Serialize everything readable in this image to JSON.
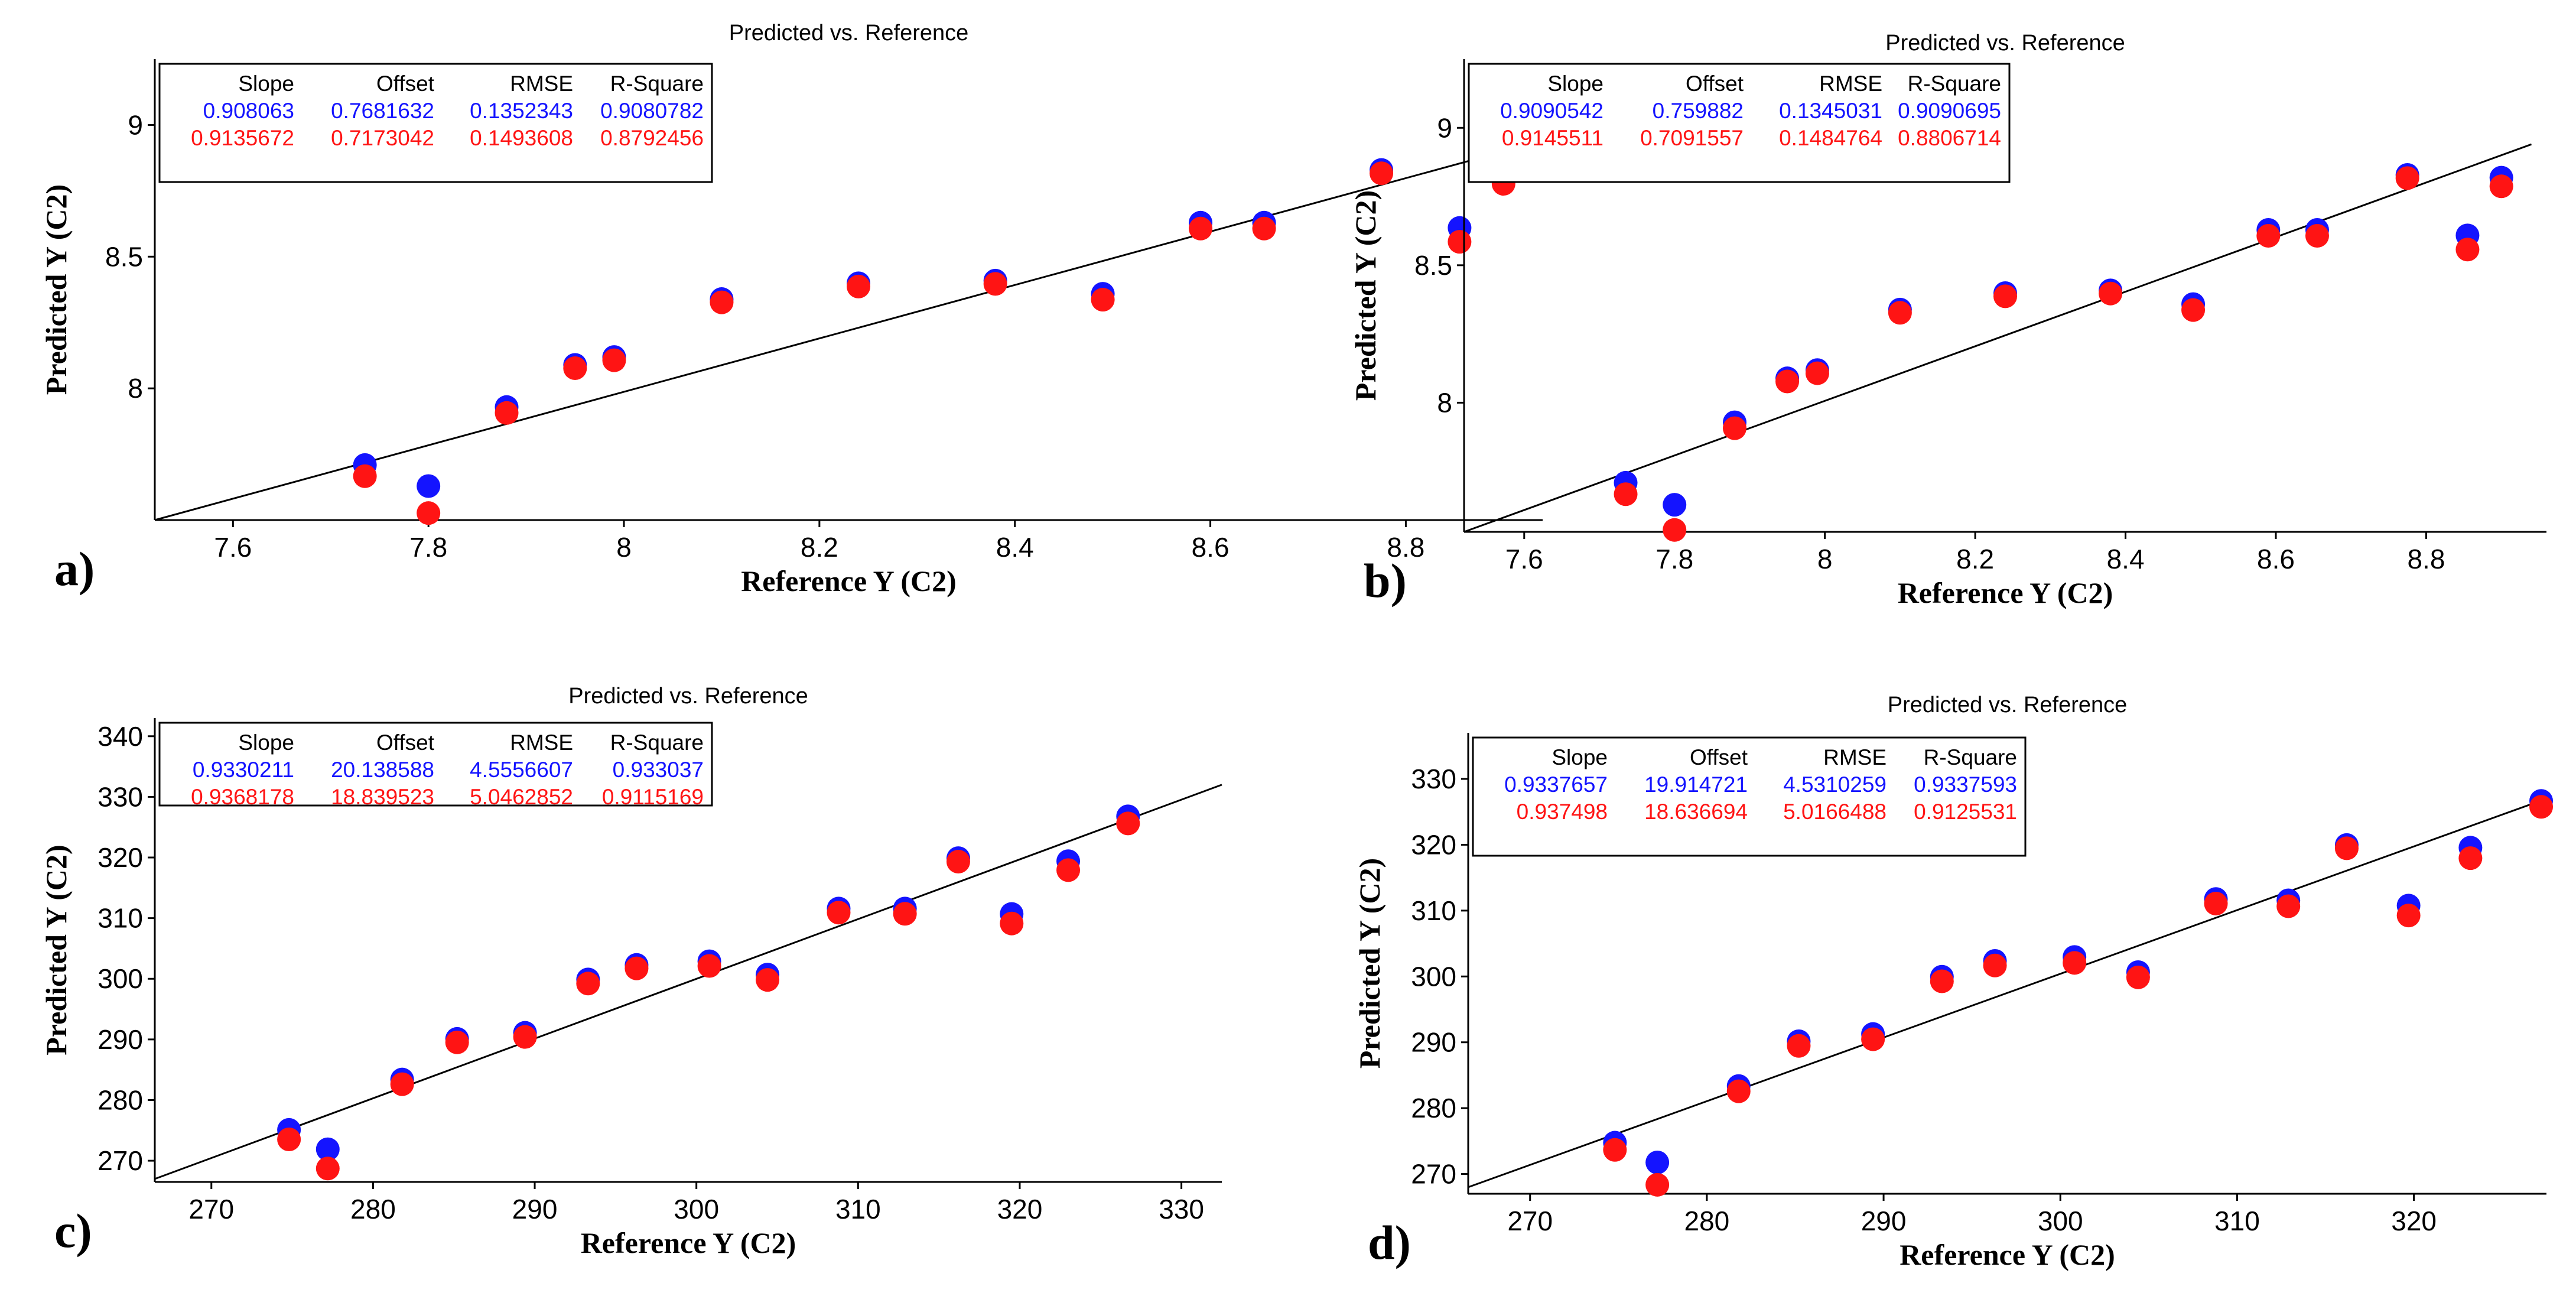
{
  "colors": {
    "calibration": "#1414ff",
    "validation": "#ff1414",
    "axis": "#000000"
  },
  "chart_data": [
    {
      "panel": "a)",
      "type": "scatter",
      "title": "Predicted vs. Reference",
      "xlabel": "Reference Y (C2)",
      "ylabel": "Predicted Y (C2)",
      "xlim": [
        7.52,
        8.94
      ],
      "ylim": [
        7.5,
        9.25
      ],
      "xticks": [
        "7.6",
        "7.8",
        "8",
        "8.2",
        "8.4",
        "8.6",
        "8.8"
      ],
      "xtick_values": [
        7.6,
        7.8,
        8.0,
        8.2,
        8.4,
        8.6,
        8.8
      ],
      "yticks": [
        "8",
        "8.5",
        "9"
      ],
      "ytick_values": [
        8.0,
        8.5,
        9.0
      ],
      "stats_headers": [
        "Slope",
        "Offset",
        "RMSE",
        "R-Square"
      ],
      "stats": [
        {
          "name": "calibration",
          "values": [
            "0.908063",
            "0.7681632",
            "0.1352343",
            "0.9080782"
          ]
        },
        {
          "name": "validation",
          "values": [
            "0.9135672",
            "0.7173042",
            "0.1493608",
            "0.8792456"
          ]
        }
      ],
      "fit_line": {
        "x": [
          7.52,
          8.94
        ],
        "y": [
          7.5,
          8.94
        ]
      },
      "series": [
        {
          "name": "calibration",
          "points": [
            [
              7.735,
              7.7
            ],
            [
              7.8,
              7.62
            ],
            [
              7.88,
              7.92
            ],
            [
              7.95,
              8.08
            ],
            [
              7.99,
              8.11
            ],
            [
              8.1,
              8.33
            ],
            [
              8.24,
              8.39
            ],
            [
              8.38,
              8.4
            ],
            [
              8.49,
              8.35
            ],
            [
              8.59,
              8.62
            ],
            [
              8.655,
              8.62
            ],
            [
              8.775,
              8.82
            ],
            [
              8.855,
              8.6
            ],
            [
              8.9,
              8.81
            ]
          ]
        },
        {
          "name": "validation",
          "points": [
            [
              7.735,
              7.68
            ],
            [
              7.8,
              7.54
            ],
            [
              7.88,
              7.92
            ],
            [
              7.95,
              8.09
            ],
            [
              7.99,
              8.12
            ],
            [
              8.1,
              8.34
            ],
            [
              8.24,
              8.4
            ],
            [
              8.38,
              8.41
            ],
            [
              8.49,
              8.35
            ],
            [
              8.59,
              8.62
            ],
            [
              8.655,
              8.62
            ],
            [
              8.775,
              8.83
            ],
            [
              8.855,
              8.57
            ],
            [
              8.9,
              8.79
            ]
          ]
        }
      ]
    },
    {
      "panel": "b)",
      "type": "scatter",
      "title": "Predicted vs. Reference",
      "xlabel": "Reference Y (C2)",
      "ylabel": "Predicted Y (C2)",
      "xlim": [
        7.52,
        8.96
      ],
      "ylim": [
        7.53,
        9.25
      ],
      "xticks": [
        "7.6",
        "7.8",
        "8",
        "8.2",
        "8.4",
        "8.6",
        "8.8"
      ],
      "xtick_values": [
        7.6,
        7.8,
        8.0,
        8.2,
        8.4,
        8.6,
        8.8
      ],
      "yticks": [
        "8",
        "8.5",
        "9"
      ],
      "ytick_values": [
        8.0,
        8.5,
        9.0
      ],
      "stats_headers": [
        "Slope",
        "Offset",
        "RMSE",
        "R-Square"
      ],
      "stats": [
        {
          "name": "calibration",
          "values": [
            "0.9090542",
            "0.759882",
            "0.1345031",
            "0.9090695"
          ]
        },
        {
          "name": "validation",
          "values": [
            "0.9145511",
            "0.7091557",
            "0.1484764",
            "0.8806714"
          ]
        }
      ],
      "fit_line": {
        "x": [
          7.52,
          8.94
        ],
        "y": [
          7.53,
          8.94
        ]
      },
      "series": [
        {
          "name": "calibration",
          "points": [
            [
              7.735,
              7.7
            ],
            [
              7.8,
              7.62
            ],
            [
              7.88,
              7.92
            ],
            [
              7.95,
              8.08
            ],
            [
              7.99,
              8.11
            ],
            [
              8.1,
              8.33
            ],
            [
              8.24,
              8.39
            ],
            [
              8.38,
              8.4
            ],
            [
              8.49,
              8.35
            ],
            [
              8.59,
              8.62
            ],
            [
              8.655,
              8.62
            ],
            [
              8.775,
              8.82
            ],
            [
              8.855,
              8.6
            ],
            [
              8.9,
              8.81
            ]
          ]
        },
        {
          "name": "validation",
          "points": [
            [
              7.735,
              7.68
            ],
            [
              7.8,
              7.55
            ],
            [
              7.88,
              7.92
            ],
            [
              7.95,
              8.09
            ],
            [
              7.99,
              8.12
            ],
            [
              8.1,
              8.34
            ],
            [
              8.24,
              8.4
            ],
            [
              8.38,
              8.41
            ],
            [
              8.49,
              8.35
            ],
            [
              8.59,
              8.62
            ],
            [
              8.655,
              8.62
            ],
            [
              8.775,
              8.83
            ],
            [
              8.855,
              8.57
            ],
            [
              8.9,
              8.8
            ]
          ]
        }
      ]
    },
    {
      "panel": "c)",
      "type": "scatter",
      "title": "Predicted vs. Reference",
      "xlabel": "Reference Y (C2)",
      "ylabel": "Predicted Y (C2)",
      "xlim": [
        266.5,
        332.5
      ],
      "ylim": [
        266.5,
        343
      ],
      "xticks": [
        "270",
        "280",
        "290",
        "300",
        "310",
        "320",
        "330"
      ],
      "xtick_values": [
        270,
        280,
        290,
        300,
        310,
        320,
        330
      ],
      "yticks": [
        "270",
        "280",
        "290",
        "300",
        "310",
        "320",
        "330",
        "340"
      ],
      "ytick_values": [
        270,
        280,
        290,
        300,
        310,
        320,
        330,
        340
      ],
      "stats_headers": [
        "Slope",
        "Offset",
        "RMSE",
        "R-Square"
      ],
      "stats": [
        {
          "name": "calibration",
          "values": [
            "0.9330211",
            "20.138588",
            "4.5556607",
            "0.933037"
          ]
        },
        {
          "name": "validation",
          "values": [
            "0.9368178",
            "18.839523",
            "5.0462852",
            "0.9115169"
          ]
        }
      ],
      "fit_line": {
        "x": [
          266.5,
          332.5
        ],
        "y": [
          267.0,
          332.0
        ]
      },
      "series": [
        {
          "name": "calibration",
          "points": [
            [
              274.8,
              274.7
            ],
            [
              277.2,
              271.5
            ],
            [
              281.8,
              283.0
            ],
            [
              285.2,
              289.7
            ],
            [
              289.4,
              290.7
            ],
            [
              293.3,
              299.5
            ],
            [
              296.3,
              301.9
            ],
            [
              300.8,
              302.5
            ],
            [
              304.4,
              300.3
            ],
            [
              308.8,
              311.2
            ],
            [
              312.9,
              311.2
            ],
            [
              316.2,
              319.5
            ],
            [
              319.5,
              310.3
            ],
            [
              323.0,
              319.0
            ],
            [
              326.7,
              326.4
            ]
          ]
        },
        {
          "name": "validation",
          "points": [
            [
              274.8,
              274.1
            ],
            [
              277.2,
              269.3
            ],
            [
              281.8,
              283.2
            ],
            [
              285.2,
              290.1
            ],
            [
              289.4,
              291.0
            ],
            [
              293.3,
              299.8
            ],
            [
              296.3,
              302.3
            ],
            [
              300.8,
              302.7
            ],
            [
              304.4,
              300.4
            ],
            [
              308.8,
              311.5
            ],
            [
              312.9,
              311.3
            ],
            [
              316.2,
              319.9
            ],
            [
              319.5,
              309.7
            ],
            [
              323.0,
              318.5
            ],
            [
              326.7,
              326.2
            ]
          ]
        }
      ]
    },
    {
      "panel": "d)",
      "type": "scatter",
      "title": "Predicted vs. Reference",
      "xlabel": "Reference Y (C2)",
      "ylabel": "Predicted Y (C2)",
      "xlim": [
        266.5,
        327.5
      ],
      "ylim": [
        267,
        337
      ],
      "xticks": [
        "270",
        "280",
        "290",
        "300",
        "310",
        "320"
      ],
      "xtick_values": [
        270,
        280,
        290,
        300,
        310,
        320
      ],
      "yticks": [
        "270",
        "280",
        "290",
        "300",
        "310",
        "320",
        "330"
      ],
      "ytick_values": [
        270,
        280,
        290,
        300,
        310,
        320,
        330
      ],
      "stats_headers": [
        "Slope",
        "Offset",
        "RMSE",
        "R-Square"
      ],
      "stats": [
        {
          "name": "calibration",
          "values": [
            "0.9337657",
            "19.914721",
            "4.5310259",
            "0.9337593"
          ]
        },
        {
          "name": "validation",
          "values": [
            "0.937498",
            "18.636694",
            "5.0166488",
            "0.9125531"
          ]
        }
      ],
      "fit_line": {
        "x": [
          266.5,
          327.5
        ],
        "y": [
          268.0,
          327.0
        ]
      },
      "series": [
        {
          "name": "calibration",
          "points": [
            [
              274.8,
              274.4
            ],
            [
              277.2,
              271.4
            ],
            [
              281.8,
              283.0
            ],
            [
              285.2,
              289.8
            ],
            [
              289.4,
              290.9
            ],
            [
              293.3,
              299.6
            ],
            [
              296.3,
              302.0
            ],
            [
              300.8,
              302.6
            ],
            [
              304.4,
              300.3
            ],
            [
              308.8,
              311.4
            ],
            [
              312.9,
              311.2
            ],
            [
              316.2,
              319.6
            ],
            [
              319.7,
              310.4
            ],
            [
              323.2,
              319.2
            ],
            [
              327.2,
              326.3
            ]
          ]
        },
        {
          "name": "validation",
          "points": [
            [
              274.8,
              274.2
            ],
            [
              277.2,
              268.9
            ],
            [
              281.8,
              283.1
            ],
            [
              285.2,
              290.0
            ],
            [
              289.4,
              291.0
            ],
            [
              293.3,
              299.8
            ],
            [
              296.3,
              302.2
            ],
            [
              300.8,
              302.6
            ],
            [
              304.4,
              300.4
            ],
            [
              308.8,
              311.6
            ],
            [
              312.9,
              311.2
            ],
            [
              316.2,
              320.0
            ],
            [
              319.7,
              309.8
            ],
            [
              323.2,
              318.5
            ],
            [
              327.2,
              326.3
            ]
          ]
        }
      ]
    }
  ]
}
